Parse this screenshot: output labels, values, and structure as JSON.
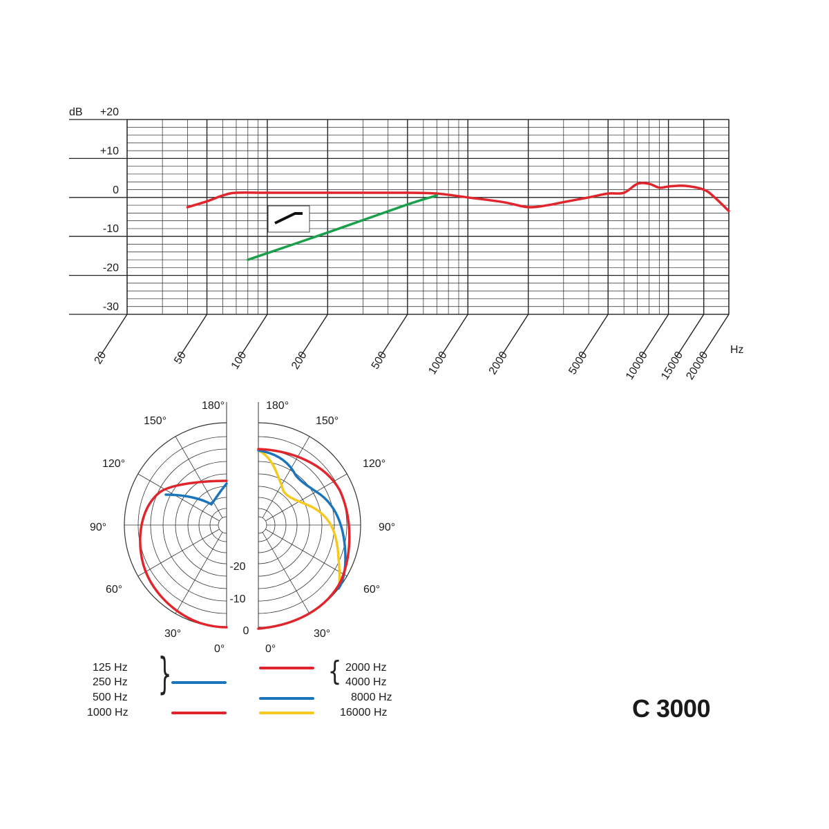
{
  "chart_data": [
    {
      "type": "line",
      "title": "",
      "xscale": "log",
      "xlabel": "Hz",
      "ylabel": "dB",
      "xlim": [
        20,
        20000
      ],
      "ylim": [
        -30,
        20
      ],
      "grid": true,
      "x_tick_labels": [
        "20",
        "50",
        "100",
        "200",
        "500",
        "1000",
        "2000",
        "5000",
        "10000",
        "15000",
        "20000"
      ],
      "x_ticks": [
        20,
        50,
        100,
        200,
        500,
        1000,
        2000,
        5000,
        10000,
        15000,
        20000
      ],
      "y_tick_labels": [
        "+20",
        "+10",
        "0",
        "-10",
        "-20",
        "-30"
      ],
      "y_ticks": [
        20,
        10,
        0,
        -10,
        -20,
        -30
      ],
      "series": [
        {
          "color": "#e0252c",
          "x": [
            40,
            50,
            60,
            70,
            100,
            200,
            500,
            700,
            1000,
            1500,
            2000,
            2500,
            3000,
            4000,
            5000,
            6000,
            7000,
            8000,
            9000,
            10000,
            12000,
            15000,
            17000,
            20000
          ],
          "y": [
            -2.5,
            -1,
            0.5,
            1.2,
            1.2,
            1.2,
            1.2,
            1,
            0,
            -1.2,
            -2.5,
            -2,
            -1.2,
            0,
            1,
            1.2,
            3.5,
            3.5,
            2.5,
            2.8,
            3,
            2,
            0,
            -3.5
          ]
        },
        {
          "color": "#1aa04a",
          "x": [
            80,
            200,
            500,
            700
          ],
          "y": [
            -16,
            -9,
            -1.8,
            0.5
          ]
        }
      ],
      "annotations": [
        "low-cut-filter-symbol"
      ]
    },
    {
      "type": "polar",
      "angle_labels": [
        "0°",
        "30°",
        "60°",
        "90°",
        "120°",
        "150°",
        "180°"
      ],
      "radial_labels": [
        "0",
        "-10",
        "-20"
      ],
      "series": [
        {
          "name": "125 Hz / 250 Hz / 500 Hz",
          "color": "#1b75bc",
          "side": "left"
        },
        {
          "name": "1000 Hz",
          "color": "#e0252c",
          "side": "left"
        },
        {
          "name": "2000 Hz / 4000 Hz",
          "color": "#e0252c",
          "side": "right"
        },
        {
          "name": "8000 Hz",
          "color": "#1b75bc",
          "side": "right"
        },
        {
          "name": "16000 Hz",
          "color": "#f7c81e",
          "side": "right"
        }
      ]
    }
  ],
  "legend": {
    "left_labels": [
      "125 Hz",
      "250 Hz",
      "500 Hz",
      "1000 Hz"
    ],
    "right_labels": [
      "2000 Hz",
      "4000 Hz",
      "8000 Hz",
      "16000 Hz"
    ]
  },
  "model": "C 3000"
}
